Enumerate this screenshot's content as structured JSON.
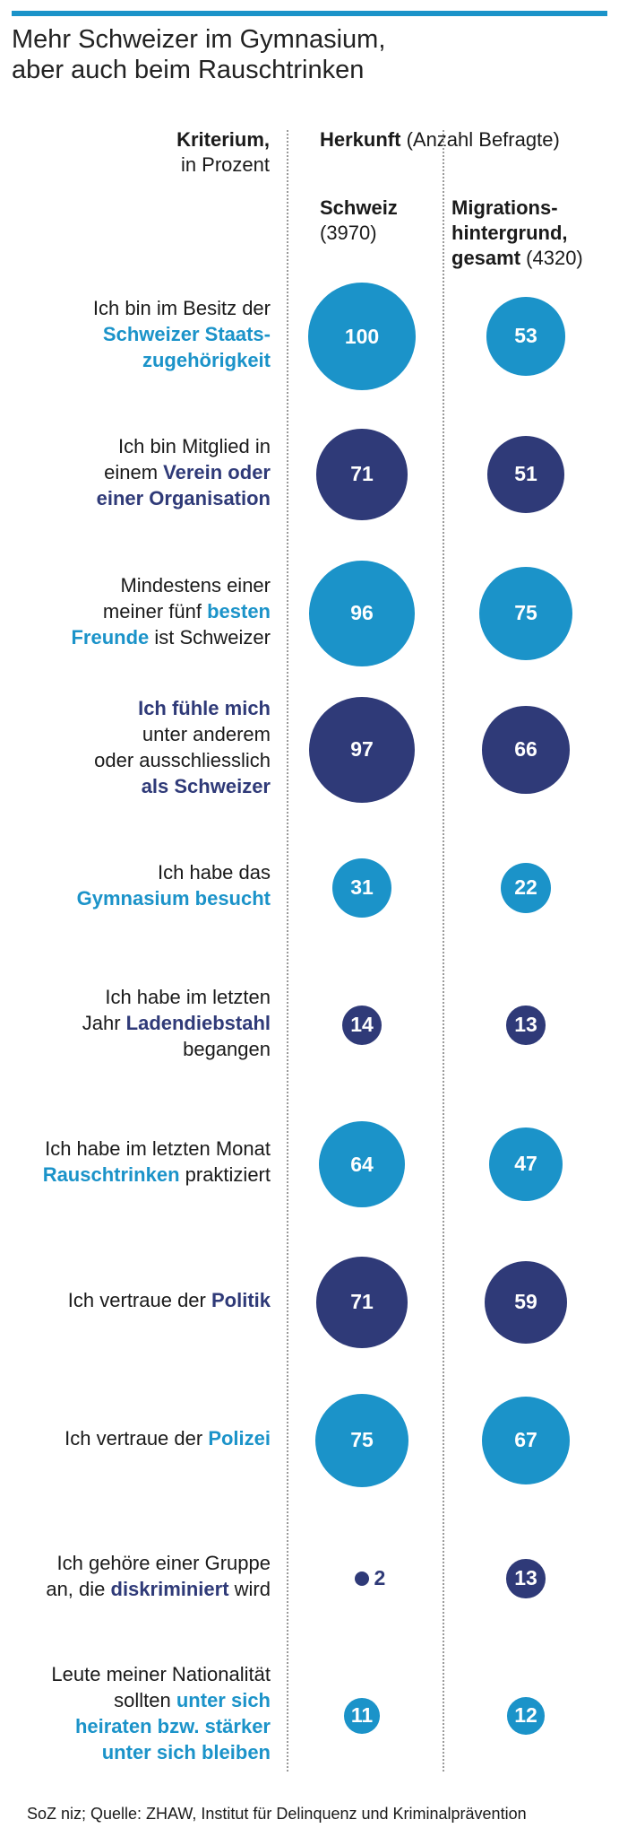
{
  "title": {
    "line1": "Mehr Schweizer im Gymnasium,",
    "line2": "aber auch beim Rauschtrinken"
  },
  "headers": {
    "criterion_bold": "Kriterium,",
    "criterion_rest": "in Prozent",
    "origin_bold": "Herkunft",
    "origin_rest": " (Anzahl Befragte)",
    "col1_bold": "Schweiz",
    "col1_count": "(3970)",
    "col2_line1": "Migrations-",
    "col2_line2": "hintergrund,",
    "col2_line3_bold": "gesamt",
    "col2_count": " (4320)"
  },
  "colors": {
    "light": "#1b93c9",
    "dark": "#2f3a78",
    "bar": "#1b93c9"
  },
  "chart_data": {
    "type": "bubble-table",
    "title": "Mehr Schweizer im Gymnasium, aber auch beim Rauschtrinken",
    "unit": "Prozent",
    "series": [
      {
        "name": "Schweiz",
        "n": 3970
      },
      {
        "name": "Migrationshintergrund, gesamt",
        "n": 4320
      }
    ],
    "rows": [
      {
        "color": "light",
        "label": [
          [
            "Ich bin im Besitz der",
            ""
          ],
          [
            "Schweizer Staats-",
            "hl"
          ],
          [
            "zugehörigkeit",
            "hl"
          ]
        ],
        "values": [
          100,
          53
        ]
      },
      {
        "color": "dark",
        "label": [
          [
            "Ich bin Mitglied in",
            ""
          ],
          [
            "einem |Verein oder",
            "mix"
          ],
          [
            "einer Organisation",
            "hl"
          ]
        ],
        "values": [
          71,
          51
        ]
      },
      {
        "color": "light",
        "label": [
          [
            "Mindestens einer",
            ""
          ],
          [
            "meiner fünf |besten",
            "mix"
          ],
          [
            "Freunde| ist Schweizer",
            "mixr"
          ]
        ],
        "values": [
          96,
          75
        ]
      },
      {
        "color": "dark",
        "label": [
          [
            "Ich fühle mich",
            "hl"
          ],
          [
            "unter anderem",
            ""
          ],
          [
            "oder ausschliesslich",
            ""
          ],
          [
            "als Schweizer",
            "hl"
          ]
        ],
        "values": [
          97,
          66
        ]
      },
      {
        "color": "light",
        "label": [
          [
            "Ich habe das",
            ""
          ],
          [
            "Gymnasium besucht",
            "hl"
          ]
        ],
        "values": [
          31,
          22
        ]
      },
      {
        "color": "dark",
        "label": [
          [
            "Ich habe im letzten",
            ""
          ],
          [
            "Jahr |Ladendiebstahl",
            "mix"
          ],
          [
            "begangen",
            ""
          ]
        ],
        "values": [
          14,
          13
        ]
      },
      {
        "color": "light",
        "label": [
          [
            "Ich habe im letzten Monat",
            ""
          ],
          [
            "Rauschtrinken| praktiziert",
            "mixr"
          ]
        ],
        "values": [
          64,
          47
        ]
      },
      {
        "color": "dark",
        "label": [
          [
            "Ich vertraue der |Politik",
            "mix"
          ]
        ],
        "values": [
          71,
          59
        ]
      },
      {
        "color": "light",
        "label": [
          [
            "Ich vertraue der |Polizei",
            "mix"
          ]
        ],
        "values": [
          75,
          67
        ]
      },
      {
        "color": "dark",
        "label": [
          [
            "Ich gehöre einer Gruppe",
            ""
          ],
          [
            "an, die |diskriminiert| wird",
            "mixm"
          ]
        ],
        "values": [
          2,
          13
        ]
      },
      {
        "color": "light",
        "label": [
          [
            "Leute meiner Nationalität",
            ""
          ],
          [
            "sollten |unter sich",
            "mix"
          ],
          [
            "heiraten bzw. stärker",
            "hl"
          ],
          [
            "unter sich bleiben",
            "hl"
          ]
        ],
        "values": [
          11,
          12
        ]
      }
    ]
  },
  "source": "SoZ niz; Quelle: ZHAW, Institut für Delinquenz und Kriminalprävention"
}
